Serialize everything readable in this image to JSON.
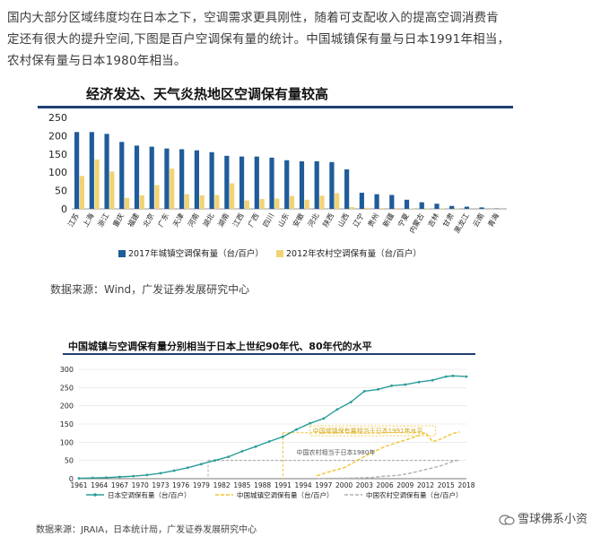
{
  "paragraph": {
    "line1": "国内大部分区域纬度均在日本之下，空调需求更具刚性，随着可支配收入的提高空调消费肯",
    "line2": "定还有很大的提升空间,下图是百户空调保有量的统计。中国城镇保有量与日本1991年相当，",
    "line3": "农村保有量与日本1980年相当。"
  },
  "figure1": {
    "title": "经济发达、天气炎热地区空调保有量较高",
    "source": "数据来源：Wind，广发证券发展研究中心"
  },
  "figure2": {
    "title": "中国城镇与空调保有量分别相当于日本上世纪90年代、80年代的水平",
    "source": "数据来源：JRAIA，日本统计局，广发证券发展研究中心"
  },
  "watermark": {
    "text": "雪球佛系小资"
  },
  "colors": {
    "urban": "#1f5c99",
    "rural": "#f2d374",
    "japan_line": "#2a9d98",
    "cn_urban_line": "#f0c330",
    "cn_rural_line": "#b0b0b0",
    "title_rule": "#1e3f73"
  },
  "chart_data": [
    {
      "type": "bar",
      "title": "经济发达、天气炎热地区空调保有量较高",
      "categories": [
        "江苏",
        "上海",
        "浙江",
        "重庆",
        "福建",
        "北京",
        "广东",
        "天津",
        "河南",
        "湖北",
        "湖南",
        "江西",
        "广西",
        "四川",
        "山东",
        "安徽",
        "河北",
        "陕西",
        "山西",
        "辽宁",
        "贵州",
        "新疆",
        "宁夏",
        "内蒙古",
        "吉林",
        "甘肃",
        "黑龙江",
        "云南",
        "青海"
      ],
      "series": [
        {
          "name": "2017年城镇空调保有量（台/百户）",
          "values": [
            210,
            210,
            205,
            183,
            173,
            170,
            165,
            163,
            160,
            155,
            145,
            143,
            143,
            140,
            133,
            130,
            130,
            128,
            108,
            44,
            40,
            38,
            25,
            18,
            14,
            8,
            6,
            4,
            1
          ]
        },
        {
          "name": "2012年农村空调保有量（台/百户）",
          "values": [
            90,
            135,
            102,
            30,
            37,
            65,
            110,
            40,
            37,
            38,
            70,
            23,
            27,
            28,
            35,
            25,
            36,
            43,
            5,
            3,
            2,
            2,
            1,
            1,
            1,
            1,
            0,
            0,
            0
          ]
        }
      ],
      "yticks": [
        0,
        50,
        100,
        150,
        200,
        250
      ],
      "ylim": [
        0,
        250
      ],
      "legend": "bottom"
    },
    {
      "type": "line",
      "title": "中国城镇与空调保有量分别相当于日本上世纪90年代、80年代的水平",
      "xticks": [
        "1961",
        "1964",
        "1967",
        "1970",
        "1973",
        "1976",
        "1979",
        "1982",
        "1985",
        "1988",
        "1991",
        "1994",
        "1997",
        "2000",
        "2003",
        "2006",
        "2009",
        "2012",
        "2015",
        "2018"
      ],
      "yticks": [
        0,
        50,
        100,
        150,
        200,
        250,
        300
      ],
      "ylim": [
        0,
        300
      ],
      "series": [
        {
          "name": "日本空调保有量（台/百户）",
          "x": [
            1961,
            1963,
            1965,
            1967,
            1969,
            1971,
            1973,
            1975,
            1977,
            1979,
            1981,
            1983,
            1985,
            1987,
            1989,
            1991,
            1993,
            1995,
            1997,
            1999,
            2001,
            2003,
            2005,
            2007,
            2009,
            2011,
            2013,
            2015,
            2016,
            2018
          ],
          "y": [
            1,
            2,
            3,
            5,
            7,
            10,
            15,
            22,
            30,
            40,
            50,
            60,
            75,
            88,
            102,
            115,
            135,
            152,
            165,
            190,
            210,
            240,
            245,
            255,
            258,
            265,
            270,
            280,
            282,
            280
          ]
        },
        {
          "name": "中国城镇空调保有量（台/百户）",
          "x": [
            1996,
            1998,
            2000,
            2002,
            2004,
            2006,
            2008,
            2010,
            2012,
            2013,
            2014,
            2016,
            2017
          ],
          "y": [
            8,
            20,
            30,
            51,
            70,
            88,
            100,
            112,
            126,
            102,
            107,
            124,
            128
          ]
        },
        {
          "name": "中国农村空调保有量（台/百户）",
          "x": [
            1996,
            1998,
            2000,
            2002,
            2004,
            2006,
            2008,
            2010,
            2012,
            2014,
            2016,
            2017
          ],
          "y": [
            0,
            1,
            1,
            2,
            3,
            7,
            9,
            16,
            25,
            34,
            47,
            52
          ]
        }
      ],
      "annotations": [
        "中国城镇保有量相当于日本1991年水平",
        "中国农村相当于日本1980年"
      ],
      "legend": "bottom"
    }
  ]
}
